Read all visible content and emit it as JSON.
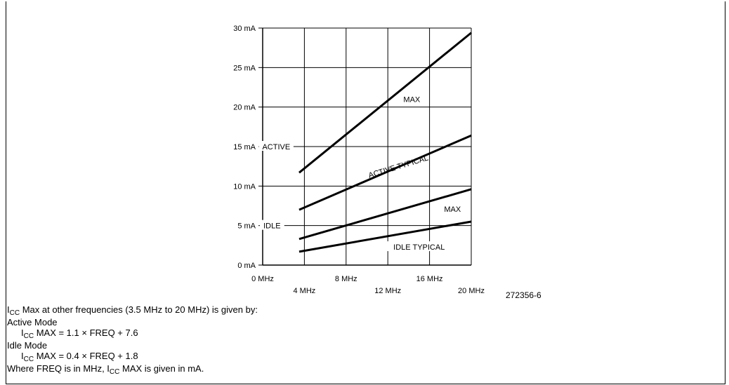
{
  "chart_data": {
    "type": "line",
    "xlabel": "",
    "ylabel": "",
    "xlim": [
      0,
      20
    ],
    "ylim": [
      0,
      30
    ],
    "grid": true,
    "y_ticks": [
      {
        "value": 0,
        "label": "0 mA"
      },
      {
        "value": 5,
        "label": "5 mA"
      },
      {
        "value": 10,
        "label": "10 mA"
      },
      {
        "value": 15,
        "label": "15 mA"
      },
      {
        "value": 20,
        "label": "20 mA"
      },
      {
        "value": 25,
        "label": "25 mA"
      },
      {
        "value": 30,
        "label": "30 mA"
      }
    ],
    "x_ticks_upper": [
      {
        "value": 0,
        "label": "0 MHz"
      },
      {
        "value": 8,
        "label": "8 MHz"
      },
      {
        "value": 16,
        "label": "16 MHz"
      }
    ],
    "x_ticks_lower": [
      {
        "value": 4,
        "label": "4 MHz"
      },
      {
        "value": 12,
        "label": "12 MHz"
      },
      {
        "value": 20,
        "label": "20 MHz"
      }
    ],
    "series": [
      {
        "name": "MAX",
        "x": [
          3.5,
          20
        ],
        "y": [
          11.7,
          29.4
        ]
      },
      {
        "name": "ACTIVE TYPICAL",
        "x": [
          3.5,
          20
        ],
        "y": [
          7.0,
          16.4
        ]
      },
      {
        "name": "MAX",
        "x": [
          3.5,
          20
        ],
        "y": [
          3.3,
          9.6
        ]
      },
      {
        "name": "IDLE TYPICAL",
        "x": [
          3.5,
          20
        ],
        "y": [
          1.7,
          5.5
        ]
      }
    ],
    "annotations": [
      {
        "text": "ACTIVE",
        "x": 1.3,
        "y": 15
      },
      {
        "text": "MAX",
        "x": 14.3,
        "y": 21
      },
      {
        "text": "ACTIVE TYPICAL",
        "x": 13,
        "y": 12.5,
        "rotate": -17
      },
      {
        "text": "IDLE",
        "x": 0.9,
        "y": 5
      },
      {
        "text": "MAX",
        "x": 18.2,
        "y": 7.1
      },
      {
        "text": "IDLE TYPICAL",
        "x": 15,
        "y": 2.3
      }
    ]
  },
  "figure_id": "272356-6",
  "notes": {
    "intro_pre": "I",
    "intro_sub": "CC",
    "intro_post": " Max at other frequencies (3.5 MHz to 20 MHz) is given by:",
    "active_mode": "Active Mode",
    "active_pre": "I",
    "active_sub": "CC",
    "active_post": " MAX = 1.1 × FREQ + 7.6",
    "idle_mode": "Idle Mode",
    "idle_pre": "I",
    "idle_sub": "CC",
    "idle_post": " MAX = 0.4 × FREQ + 1.8",
    "where_pre": "Where FREQ is in MHz, I",
    "where_sub": "CC",
    "where_post": " MAX is given in mA."
  }
}
